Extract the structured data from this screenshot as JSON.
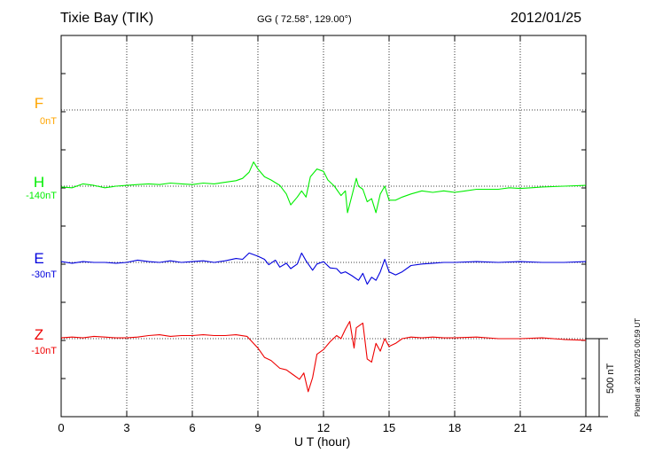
{
  "header": {
    "station": "Tixie Bay (TIK)",
    "coords": "GG ( 72.58°, 129.00°)",
    "date": "2012/01/25"
  },
  "footer": {
    "xlabel": "U T (hour)",
    "plotted": "Plotted at 2012/02/25 00:59 UT",
    "scale_label": "500 nT"
  },
  "channels": [
    {
      "name": "F",
      "baseline": "0nT",
      "color": "#ffa500"
    },
    {
      "name": "H",
      "baseline": "-140nT",
      "color": "#00ee00"
    },
    {
      "name": "E",
      "baseline": "-30nT",
      "color": "#0000dd"
    },
    {
      "name": "Z",
      "baseline": "-10nT",
      "color": "#ee0000"
    }
  ],
  "chart_data": {
    "type": "line",
    "title": "Tixie Bay (TIK)",
    "xlabel": "U T (hour)",
    "ylabel": "",
    "xlim": [
      0,
      24
    ],
    "xticks": [
      0,
      3,
      6,
      9,
      12,
      15,
      18,
      21,
      24
    ],
    "grid": true,
    "scale_bar_nT": 500,
    "series": [
      {
        "name": "F",
        "baseline_nT": 0,
        "color": "#ffa500",
        "points": []
      },
      {
        "name": "H",
        "baseline_nT": -140,
        "color": "#00ee00",
        "points": [
          [
            0,
            -5
          ],
          [
            0.5,
            -10
          ],
          [
            1,
            15
          ],
          [
            1.5,
            5
          ],
          [
            2,
            -10
          ],
          [
            2.5,
            0
          ],
          [
            3,
            5
          ],
          [
            3.5,
            10
          ],
          [
            4,
            15
          ],
          [
            4.5,
            10
          ],
          [
            5,
            20
          ],
          [
            5.5,
            15
          ],
          [
            6,
            10
          ],
          [
            6.5,
            20
          ],
          [
            7,
            15
          ],
          [
            7.5,
            25
          ],
          [
            8,
            35
          ],
          [
            8.3,
            50
          ],
          [
            8.6,
            90
          ],
          [
            8.8,
            155
          ],
          [
            9,
            110
          ],
          [
            9.3,
            60
          ],
          [
            9.6,
            40
          ],
          [
            10,
            5
          ],
          [
            10.3,
            -50
          ],
          [
            10.5,
            -120
          ],
          [
            10.8,
            -70
          ],
          [
            11,
            -30
          ],
          [
            11.2,
            -70
          ],
          [
            11.4,
            60
          ],
          [
            11.7,
            110
          ],
          [
            12,
            95
          ],
          [
            12.2,
            40
          ],
          [
            12.5,
            0
          ],
          [
            12.8,
            -60
          ],
          [
            13,
            -30
          ],
          [
            13.1,
            -170
          ],
          [
            13.3,
            -60
          ],
          [
            13.5,
            50
          ],
          [
            13.6,
            0
          ],
          [
            13.8,
            -20
          ],
          [
            14,
            -100
          ],
          [
            14.2,
            -80
          ],
          [
            14.4,
            -170
          ],
          [
            14.6,
            -50
          ],
          [
            14.8,
            0
          ],
          [
            15,
            -90
          ],
          [
            15.3,
            -90
          ],
          [
            15.6,
            -70
          ],
          [
            16,
            -50
          ],
          [
            16.5,
            -30
          ],
          [
            17,
            -40
          ],
          [
            17.5,
            -30
          ],
          [
            18,
            -40
          ],
          [
            18.5,
            -30
          ],
          [
            19,
            -20
          ],
          [
            20,
            -20
          ],
          [
            20.5,
            -10
          ],
          [
            21,
            -15
          ],
          [
            21.5,
            -10
          ],
          [
            22,
            -5
          ],
          [
            23,
            0
          ],
          [
            24,
            5
          ]
        ]
      },
      {
        "name": "E",
        "baseline_nT": -30,
        "color": "#0000dd",
        "points": [
          [
            0,
            5
          ],
          [
            0.5,
            -5
          ],
          [
            1,
            5
          ],
          [
            1.5,
            0
          ],
          [
            2,
            0
          ],
          [
            2.5,
            -5
          ],
          [
            3,
            0
          ],
          [
            3.5,
            15
          ],
          [
            4,
            5
          ],
          [
            4.5,
            0
          ],
          [
            5,
            10
          ],
          [
            5.5,
            0
          ],
          [
            6,
            5
          ],
          [
            6.5,
            10
          ],
          [
            7,
            0
          ],
          [
            7.5,
            10
          ],
          [
            8,
            25
          ],
          [
            8.3,
            20
          ],
          [
            8.6,
            60
          ],
          [
            9,
            40
          ],
          [
            9.3,
            20
          ],
          [
            9.5,
            -15
          ],
          [
            9.8,
            15
          ],
          [
            10,
            -30
          ],
          [
            10.3,
            -5
          ],
          [
            10.5,
            -40
          ],
          [
            10.8,
            -10
          ],
          [
            11,
            60
          ],
          [
            11.2,
            10
          ],
          [
            11.5,
            -50
          ],
          [
            11.7,
            -10
          ],
          [
            12,
            5
          ],
          [
            12.3,
            -35
          ],
          [
            12.6,
            -40
          ],
          [
            12.8,
            -70
          ],
          [
            13,
            -60
          ],
          [
            13.3,
            -85
          ],
          [
            13.6,
            -115
          ],
          [
            13.8,
            -70
          ],
          [
            14,
            -140
          ],
          [
            14.2,
            -95
          ],
          [
            14.4,
            -115
          ],
          [
            14.6,
            -60
          ],
          [
            14.8,
            20
          ],
          [
            15,
            -60
          ],
          [
            15.3,
            -80
          ],
          [
            15.6,
            -60
          ],
          [
            16,
            -20
          ],
          [
            16.5,
            -10
          ],
          [
            17,
            -5
          ],
          [
            17.5,
            0
          ],
          [
            18,
            0
          ],
          [
            19,
            5
          ],
          [
            20,
            0
          ],
          [
            21,
            5
          ],
          [
            22,
            0
          ],
          [
            23,
            0
          ],
          [
            24,
            5
          ]
        ]
      },
      {
        "name": "Z",
        "baseline_nT": -10,
        "color": "#ee0000",
        "points": [
          [
            0,
            5
          ],
          [
            0.5,
            10
          ],
          [
            1,
            5
          ],
          [
            1.5,
            15
          ],
          [
            2,
            10
          ],
          [
            2.5,
            5
          ],
          [
            3,
            5
          ],
          [
            3.5,
            10
          ],
          [
            4,
            20
          ],
          [
            4.5,
            25
          ],
          [
            5,
            15
          ],
          [
            5.5,
            20
          ],
          [
            6,
            20
          ],
          [
            6.5,
            25
          ],
          [
            7,
            20
          ],
          [
            7.5,
            20
          ],
          [
            8,
            25
          ],
          [
            8.5,
            15
          ],
          [
            9,
            -60
          ],
          [
            9.3,
            -120
          ],
          [
            9.6,
            -140
          ],
          [
            10,
            -190
          ],
          [
            10.3,
            -200
          ],
          [
            10.6,
            -230
          ],
          [
            10.9,
            -260
          ],
          [
            11.1,
            -220
          ],
          [
            11.3,
            -340
          ],
          [
            11.5,
            -250
          ],
          [
            11.7,
            -100
          ],
          [
            12,
            -70
          ],
          [
            12.3,
            -20
          ],
          [
            12.6,
            20
          ],
          [
            12.8,
            0
          ],
          [
            13,
            60
          ],
          [
            13.2,
            110
          ],
          [
            13.4,
            -60
          ],
          [
            13.5,
            70
          ],
          [
            13.8,
            100
          ],
          [
            14,
            -130
          ],
          [
            14.2,
            -150
          ],
          [
            14.4,
            -30
          ],
          [
            14.6,
            -80
          ],
          [
            14.8,
            0
          ],
          [
            15,
            -50
          ],
          [
            15.3,
            -30
          ],
          [
            15.6,
            0
          ],
          [
            16,
            10
          ],
          [
            16.5,
            5
          ],
          [
            17,
            10
          ],
          [
            17.5,
            5
          ],
          [
            18,
            5
          ],
          [
            19,
            10
          ],
          [
            20,
            0
          ],
          [
            21,
            0
          ],
          [
            22,
            5
          ],
          [
            23,
            -5
          ],
          [
            24,
            -10
          ]
        ]
      }
    ]
  }
}
